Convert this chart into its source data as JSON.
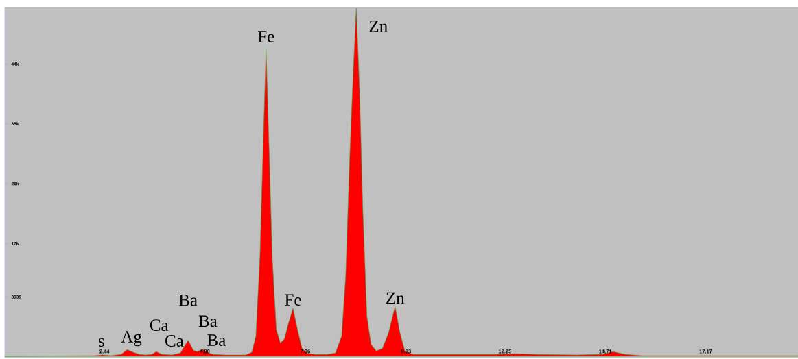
{
  "chart_data": {
    "type": "area",
    "color": "#ff0000",
    "x": [
      0,
      2.2,
      2.4,
      2.6,
      2.85,
      3.0,
      3.15,
      3.3,
      3.45,
      3.6,
      3.71,
      3.85,
      4.1,
      4.3,
      4.49,
      4.62,
      4.72,
      4.84,
      4.95,
      5.1,
      5.4,
      5.7,
      5.9,
      6.05,
      6.15,
      6.25,
      6.33,
      6.4,
      6.47,
      6.55,
      6.65,
      6.75,
      6.85,
      6.95,
      7.06,
      7.17,
      7.28,
      7.4,
      7.6,
      7.9,
      8.1,
      8.25,
      8.35,
      8.45,
      8.53,
      8.61,
      8.69,
      8.77,
      8.87,
      8.97,
      9.1,
      9.25,
      9.4,
      9.56,
      9.68,
      9.8,
      10.0,
      11.0,
      12.0,
      12.5,
      13.0,
      14.0,
      14.6,
      14.9,
      15.2,
      15.6,
      17.0,
      19.43
    ],
    "values": [
      0,
      100,
      200,
      100,
      300,
      1000,
      600,
      300,
      200,
      300,
      700,
      300,
      200,
      500,
      2400,
      900,
      700,
      1100,
      600,
      300,
      200,
      200,
      200,
      600,
      3000,
      15000,
      32000,
      46200,
      32000,
      15000,
      4000,
      2000,
      2600,
      5000,
      7200,
      4000,
      1200,
      500,
      300,
      300,
      500,
      3000,
      12000,
      30000,
      42000,
      52400,
      40000,
      22000,
      6000,
      1800,
      800,
      1200,
      3500,
      7500,
      3500,
      800,
      300,
      300,
      300,
      400,
      300,
      200,
      300,
      700,
      300,
      100,
      100,
      100
    ],
    "xlim": [
      0,
      19.43
    ],
    "ylim": [
      -200,
      52600
    ],
    "xticks": [
      2.44,
      {
        "value": 4.9,
        "label": "4.90"
      },
      7.36,
      9.83,
      12.25,
      14.71,
      17.17
    ],
    "yticks": [
      8939,
      {
        "value": 17000,
        "label": "17k"
      },
      {
        "value": 26000,
        "label": "26k"
      },
      {
        "value": 35000,
        "label": "35k"
      },
      {
        "value": 44000,
        "label": "44k"
      }
    ],
    "grid": false,
    "annotations": [
      {
        "text": "Fe",
        "x": 6.4,
        "y": 46200
      },
      {
        "text": "Zn",
        "x": 8.61,
        "y": 52400
      },
      {
        "text": "Fe",
        "x": 7.06,
        "y": 7200
      },
      {
        "text": "Zn",
        "x": 9.56,
        "y": 7500
      },
      {
        "text": "Ba",
        "x": 4.49,
        "y": 2400
      },
      {
        "text": "Ba",
        "x": 4.84,
        "y": 1100
      },
      {
        "text": "Ba",
        "x": 5.1,
        "y": 300
      },
      {
        "text": "Ca",
        "x": 3.71,
        "y": 700
      },
      {
        "text": "Ca",
        "x": 4.1,
        "y": 200
      },
      {
        "text": "Ag",
        "x": 3.0,
        "y": 1000
      },
      {
        "text": "s",
        "x": 2.4,
        "y": 200
      }
    ]
  }
}
